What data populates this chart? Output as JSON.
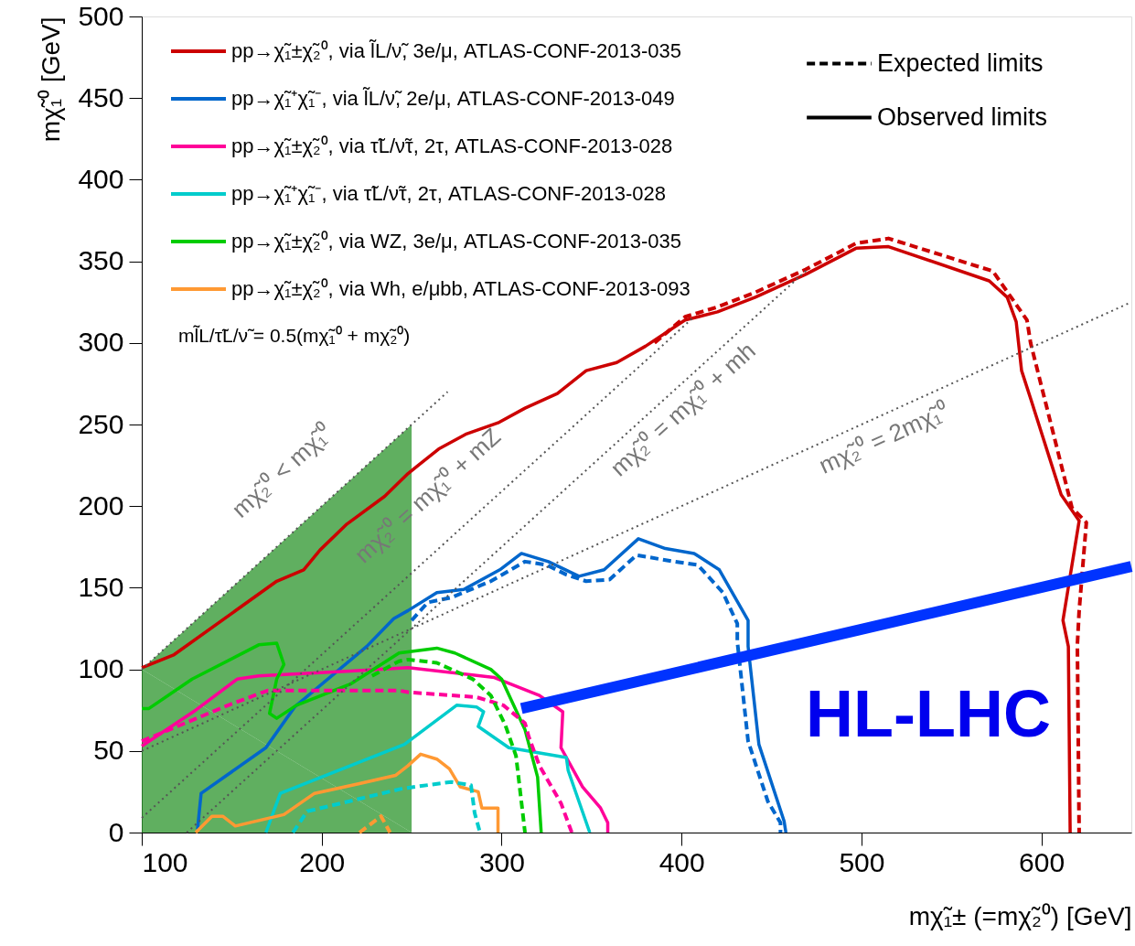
{
  "chart_data": {
    "type": "line",
    "xlabel": "mχ̃₁± (=mχ̃₂⁰) [GeV]",
    "ylabel": "mχ̃₁⁰ [GeV]",
    "xlim": [
      100,
      650
    ],
    "ylim": [
      0,
      500
    ],
    "xticks": [
      100,
      200,
      300,
      400,
      500,
      600
    ],
    "yticks": [
      0,
      50,
      100,
      150,
      200,
      250,
      300,
      350,
      400,
      450,
      500
    ],
    "grid": false,
    "legend": "top left",
    "series": [
      {
        "name": "pp→χ̃₁±χ̃₂⁰, via l̃L/ν̃,  3e/μ, ATLAS-CONF-2013-035",
        "color": "#cc0000",
        "line_style": "solid",
        "x": [
          100,
          118,
          175,
          190,
          199,
          214,
          235,
          248,
          265,
          280,
          298,
          313,
          331,
          347,
          364,
          380,
          402,
          420,
          441,
          469,
          497,
          515,
          571,
          581,
          586,
          589,
          594,
          611,
          621,
          612,
          615,
          616
        ],
        "values": [
          101,
          109,
          154,
          161,
          173,
          189,
          206,
          220,
          235,
          244,
          251,
          260,
          269,
          283,
          288,
          298,
          314,
          319,
          328,
          342,
          358,
          359,
          338,
          328,
          313,
          283,
          266,
          207,
          191,
          130,
          114,
          0
        ]
      },
      {
        "name": "pp→χ̃₁⁺χ̃₁⁻, via l̃L/ν̃,  2e/μ, ATLAS-CONF-2013-049",
        "color": "#0066cc",
        "line_style": "solid",
        "x": [
          131,
          133,
          169,
          185,
          225,
          240,
          248,
          264,
          279,
          299,
          311,
          326,
          343,
          357,
          376,
          391,
          407,
          421,
          437,
          437,
          443,
          457,
          458
        ],
        "values": [
          2,
          24,
          52,
          77,
          114,
          131,
          136,
          147,
          149,
          161,
          171,
          166,
          157,
          161,
          180,
          174,
          171,
          161,
          130,
          114,
          54,
          7,
          0
        ]
      },
      {
        "name": "pp→χ̃₁±χ̃₂⁰, via τ̃L/ν̃τ,  2τ, ATLAS-CONF-2013-028",
        "color": "#ff0099",
        "line_style": "solid",
        "x": [
          100,
          130,
          153,
          165,
          216,
          248,
          296,
          321,
          334,
          333,
          345,
          355,
          359,
          359
        ],
        "values": [
          53,
          75,
          94,
          96,
          99,
          101,
          95,
          84,
          74,
          52,
          28,
          15,
          6,
          0
        ]
      },
      {
        "name": "pp→χ̃₁⁺χ̃₁⁻, via τ̃L/ν̃τ,  2τ, ATLAS-CONF-2013-028",
        "color": "#00cccc",
        "line_style": "solid",
        "x": [
          169,
          177,
          246,
          275,
          286,
          290,
          287,
          304,
          336,
          337,
          349
        ],
        "values": [
          0,
          24,
          54,
          78,
          77,
          74,
          65,
          52,
          46,
          38,
          0
        ]
      },
      {
        "name": "pp→χ̃₁±χ̃₂⁰, via WZ,  3e/μ, ATLAS-CONF-2013-035",
        "color": "#00cc00",
        "line_style": "solid",
        "x": [
          100,
          104,
          128,
          165,
          175,
          179,
          175,
          171,
          175,
          186,
          216,
          243,
          264,
          274,
          294,
          300,
          313,
          320,
          322
        ],
        "values": [
          76,
          76,
          94,
          115,
          116,
          103,
          94,
          73,
          70,
          78,
          91,
          110,
          113,
          110,
          100,
          94,
          63,
          34,
          0
        ]
      },
      {
        "name": "pp→χ̃₁±χ̃₂⁰, via Wh, e/μbb, ATLAS-CONF-2013-093",
        "color": "#ff9933",
        "line_style": "solid",
        "x": [
          130,
          139,
          145,
          152,
          179,
          196,
          221,
          241,
          248,
          255,
          264,
          271,
          277,
          287,
          289,
          298,
          298
        ],
        "values": [
          0,
          10,
          10,
          4,
          11,
          24,
          30,
          35,
          41,
          48,
          45,
          39,
          28,
          25,
          15,
          15,
          0
        ]
      },
      {
        "color": "#cc0000",
        "line_style": "dashed",
        "x": [
          385,
          402,
          420,
          441,
          469,
          497,
          515,
          573,
          592,
          594,
          617,
          625,
          621,
          620,
          621
        ],
        "values": [
          300,
          316,
          322,
          331,
          345,
          361,
          364,
          344,
          314,
          300,
          199,
          190,
          136,
          115,
          0
        ]
      },
      {
        "color": "#0066cc",
        "line_style": "dashed",
        "x": [
          250,
          259,
          272,
          294,
          313,
          325,
          336,
          347,
          360,
          375,
          396,
          409,
          423,
          431,
          431,
          437,
          448,
          455,
          455
        ],
        "values": [
          130,
          141,
          144,
          154,
          166,
          164,
          158,
          154,
          155,
          170,
          166,
          164,
          147,
          128,
          117,
          56,
          19,
          6,
          0
        ]
      },
      {
        "color": "#ff0099",
        "line_style": "dashed",
        "x": [
          100,
          148,
          170,
          243,
          248,
          286,
          301,
          313,
          315,
          321,
          333,
          339
        ],
        "values": [
          56,
          78,
          87,
          87,
          86,
          83,
          78,
          67,
          59,
          41,
          18,
          0
        ]
      },
      {
        "color": "#00cccc",
        "line_style": "dashed",
        "x": [
          184,
          192,
          245,
          272,
          283,
          285,
          288
        ],
        "values": [
          0,
          13,
          27,
          31,
          29,
          12,
          0
        ]
      },
      {
        "color": "#00cc00",
        "line_style": "dashed",
        "x": [
          228,
          243,
          248,
          264,
          284,
          294,
          302,
          308,
          313
        ],
        "values": [
          96,
          105,
          106,
          104,
          94,
          84,
          66,
          47,
          0
        ]
      },
      {
        "color": "#ff9933",
        "line_style": "dashed",
        "x": [
          221,
          233,
          238
        ],
        "values": [
          0,
          10,
          0
        ]
      },
      {
        "color": "#555555",
        "line_style": "dotted",
        "x": [
          100,
          270
        ],
        "values": [
          100,
          270
        ]
      },
      {
        "color": "#555555",
        "line_style": "dotted",
        "x": [
          100,
          406
        ],
        "values": [
          9,
          315
        ]
      },
      {
        "color": "#555555",
        "line_style": "dotted",
        "x": [
          125,
          470
        ],
        "values": [
          0,
          345
        ]
      },
      {
        "color": "#555555",
        "line_style": "dotted",
        "x": [
          100,
          650
        ],
        "values": [
          50,
          325
        ]
      },
      {
        "type": "area",
        "color": "#339933",
        "x": [
          100,
          250
        ],
        "values": [
          100,
          250
        ]
      },
      {
        "color": "#0033ff",
        "line_style": "solid",
        "x": [
          311,
          650
        ],
        "values": [
          76,
          163
        ]
      }
    ],
    "annotations": [
      "Expected limits",
      "Observed limits",
      "ml̃L/τ̃L/ν̃ = 0.5(mχ̃₁⁰ + mχ̃₂⁰)",
      "HL-LHC",
      "mχ̃₂⁰ < mχ̃₁⁰",
      "mχ̃₂⁰ = mχ̃₁⁰ + mZ",
      "mχ̃₂⁰ = mχ̃₁⁰ + mh",
      "mχ̃₂⁰ = 2mχ̃₁⁰"
    ]
  }
}
